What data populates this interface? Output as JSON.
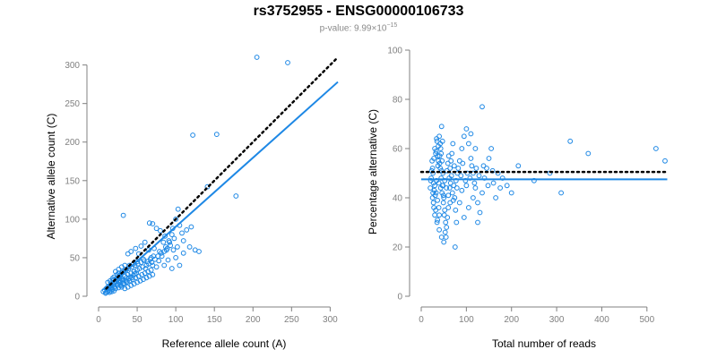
{
  "title": "rs3752955 - ENSG00000106733",
  "subtitle": {
    "prefix": "p-value: 9.99×10",
    "exponent": "−15"
  },
  "colors": {
    "points": "#1e88e5",
    "fit": "#1e88e5",
    "reference": "#000000",
    "axis": "#808080"
  },
  "chart_data": [
    {
      "type": "scatter",
      "xlabel": "Reference allele count (A)",
      "ylabel": "Alternative allele count (C)",
      "xlim": [
        0,
        310
      ],
      "ylim": [
        0,
        310
      ],
      "xticks": [
        0,
        50,
        100,
        150,
        200,
        250,
        300
      ],
      "yticks": [
        0,
        50,
        100,
        150,
        200,
        250,
        300
      ],
      "reference_line": {
        "style": "dotted",
        "x": [
          10,
          310
        ],
        "y": [
          10,
          310
        ]
      },
      "fit_line": {
        "style": "solid",
        "x": [
          8,
          310
        ],
        "y": [
          8,
          278
        ]
      },
      "points": [
        [
          205,
          310
        ],
        [
          245,
          303
        ],
        [
          122,
          209
        ],
        [
          153,
          210
        ],
        [
          141,
          142
        ],
        [
          178,
          130
        ],
        [
          103,
          113
        ],
        [
          100,
          100
        ],
        [
          105,
          92
        ],
        [
          32,
          105
        ],
        [
          70,
          94
        ],
        [
          75,
          88
        ],
        [
          66,
          95
        ],
        [
          80,
          85
        ],
        [
          86,
          78
        ],
        [
          95,
          80
        ],
        [
          92,
          70
        ],
        [
          110,
          72
        ],
        [
          118,
          64
        ],
        [
          60,
          70
        ],
        [
          55,
          65
        ],
        [
          48,
          62
        ],
        [
          42,
          58
        ],
        [
          38,
          55
        ],
        [
          52,
          55
        ],
        [
          65,
          60
        ],
        [
          72,
          62
        ],
        [
          88,
          60
        ],
        [
          82,
          52
        ],
        [
          78,
          46
        ],
        [
          90,
          47
        ],
        [
          100,
          50
        ],
        [
          102,
          64
        ],
        [
          110,
          56
        ],
        [
          68,
          50
        ],
        [
          58,
          48
        ],
        [
          50,
          45
        ],
        [
          45,
          42
        ],
        [
          40,
          40
        ],
        [
          35,
          35
        ],
        [
          62,
          40
        ],
        [
          70,
          40
        ],
        [
          75,
          38
        ],
        [
          85,
          40
        ],
        [
          95,
          36
        ],
        [
          105,
          40
        ],
        [
          30,
          30
        ],
        [
          28,
          26
        ],
        [
          25,
          22
        ],
        [
          22,
          20
        ],
        [
          20,
          18
        ],
        [
          18,
          16
        ],
        [
          15,
          14
        ],
        [
          12,
          12
        ],
        [
          10,
          10
        ],
        [
          8,
          8
        ],
        [
          6,
          6
        ],
        [
          16,
          10
        ],
        [
          20,
          12
        ],
        [
          24,
          14
        ],
        [
          28,
          15
        ],
        [
          32,
          16
        ],
        [
          36,
          18
        ],
        [
          40,
          20
        ],
        [
          44,
          22
        ],
        [
          48,
          24
        ],
        [
          52,
          26
        ],
        [
          56,
          28
        ],
        [
          60,
          30
        ],
        [
          64,
          32
        ],
        [
          68,
          34
        ],
        [
          30,
          22
        ],
        [
          34,
          26
        ],
        [
          38,
          28
        ],
        [
          42,
          30
        ],
        [
          46,
          32
        ],
        [
          50,
          34
        ],
        [
          26,
          30
        ],
        [
          24,
          28
        ],
        [
          20,
          25
        ],
        [
          18,
          23
        ],
        [
          15,
          20
        ],
        [
          12,
          18
        ],
        [
          22,
          32
        ],
        [
          26,
          35
        ],
        [
          30,
          38
        ],
        [
          34,
          40
        ],
        [
          14,
          8
        ],
        [
          18,
          9
        ],
        [
          22,
          10
        ],
        [
          26,
          11
        ],
        [
          30,
          12
        ],
        [
          34,
          10
        ],
        [
          38,
          12
        ],
        [
          42,
          14
        ],
        [
          46,
          16
        ],
        [
          50,
          18
        ],
        [
          54,
          20
        ],
        [
          58,
          22
        ],
        [
          62,
          24
        ],
        [
          66,
          26
        ],
        [
          70,
          28
        ],
        [
          28,
          20
        ],
        [
          32,
          22
        ],
        [
          36,
          24
        ],
        [
          14,
          12
        ],
        [
          16,
          13
        ],
        [
          19,
          15
        ],
        [
          21,
          17
        ],
        [
          23,
          19
        ],
        [
          25,
          16
        ],
        [
          27,
          18
        ],
        [
          29,
          14
        ],
        [
          31,
          20
        ],
        [
          33,
          17
        ],
        [
          35,
          21
        ],
        [
          37,
          19
        ],
        [
          39,
          23
        ],
        [
          41,
          25
        ],
        [
          43,
          24
        ],
        [
          45,
          27
        ],
        [
          47,
          29
        ],
        [
          49,
          30
        ],
        [
          53,
          36
        ],
        [
          57,
          38
        ],
        [
          61,
          36
        ],
        [
          65,
          42
        ],
        [
          69,
          44
        ],
        [
          73,
          48
        ],
        [
          77,
          52
        ],
        [
          81,
          56
        ],
        [
          85,
          58
        ],
        [
          89,
          62
        ],
        [
          93,
          66
        ],
        [
          97,
          60
        ],
        [
          12,
          6
        ],
        [
          10,
          5
        ],
        [
          14,
          5
        ],
        [
          17,
          6
        ],
        [
          20,
          7
        ],
        [
          9,
          4
        ],
        [
          11,
          9
        ],
        [
          13,
          10
        ],
        [
          16,
          17
        ],
        [
          19,
          21
        ],
        [
          24,
          24
        ],
        [
          27,
          27
        ],
        [
          31,
          31
        ],
        [
          35,
          33
        ],
        [
          39,
          36
        ],
        [
          43,
          38
        ],
        [
          47,
          40
        ],
        [
          51,
          42
        ],
        [
          55,
          44
        ],
        [
          59,
          46
        ],
        [
          63,
          45
        ],
        [
          67,
          48
        ],
        [
          71,
          52
        ],
        [
          79,
          58
        ],
        [
          87,
          64
        ],
        [
          91,
          72
        ],
        [
          98,
          75
        ],
        [
          108,
          82
        ],
        [
          114,
          86
        ],
        [
          120,
          90
        ],
        [
          125,
          60
        ],
        [
          130,
          58
        ],
        [
          96,
          88
        ],
        [
          84,
          70
        ]
      ]
    },
    {
      "type": "scatter",
      "xlabel": "Total number of reads",
      "ylabel": "Percentage alternative (C)",
      "xlim": [
        0,
        550
      ],
      "ylim": [
        0,
        100
      ],
      "xticks": [
        0,
        100,
        200,
        300,
        400,
        500
      ],
      "yticks": [
        0,
        20,
        40,
        60,
        80,
        100
      ],
      "reference_line": {
        "style": "dotted",
        "x": [
          0,
          545
        ],
        "y": [
          50.5,
          50.5
        ]
      },
      "fit_line": {
        "style": "solid",
        "x": [
          0,
          545
        ],
        "y": [
          47.5,
          47.5
        ]
      },
      "points": [
        [
          135,
          77
        ],
        [
          330,
          63
        ],
        [
          370,
          58
        ],
        [
          520,
          60
        ],
        [
          540,
          55
        ],
        [
          285,
          50
        ],
        [
          310,
          42
        ],
        [
          215,
          53
        ],
        [
          250,
          47
        ],
        [
          45,
          69
        ],
        [
          40,
          65
        ],
        [
          35,
          63
        ],
        [
          30,
          60
        ],
        [
          28,
          56
        ],
        [
          25,
          52
        ],
        [
          22,
          48
        ],
        [
          20,
          44
        ],
        [
          25,
          40
        ],
        [
          28,
          36
        ],
        [
          30,
          33
        ],
        [
          35,
          30
        ],
        [
          40,
          27
        ],
        [
          45,
          24
        ],
        [
          50,
          22
        ],
        [
          75,
          20
        ],
        [
          32,
          58
        ],
        [
          38,
          55
        ],
        [
          42,
          52
        ],
        [
          48,
          50
        ],
        [
          52,
          47
        ],
        [
          56,
          44
        ],
        [
          60,
          41
        ],
        [
          64,
          38
        ],
        [
          30,
          45
        ],
        [
          33,
          42
        ],
        [
          36,
          39
        ],
        [
          39,
          36
        ],
        [
          42,
          62
        ],
        [
          44,
          58
        ],
        [
          46,
          55
        ],
        [
          48,
          45
        ],
        [
          50,
          40
        ],
        [
          52,
          35
        ],
        [
          54,
          30
        ],
        [
          56,
          28
        ],
        [
          58,
          32
        ],
        [
          60,
          36
        ],
        [
          62,
          48
        ],
        [
          64,
          52
        ],
        [
          66,
          55
        ],
        [
          68,
          58
        ],
        [
          70,
          62
        ],
        [
          72,
          45
        ],
        [
          74,
          40
        ],
        [
          76,
          35
        ],
        [
          78,
          30
        ],
        [
          80,
          50
        ],
        [
          85,
          55
        ],
        [
          90,
          60
        ],
        [
          95,
          65
        ],
        [
          100,
          68
        ],
        [
          105,
          62
        ],
        [
          110,
          56
        ],
        [
          115,
          50
        ],
        [
          120,
          44
        ],
        [
          125,
          38
        ],
        [
          130,
          34
        ],
        [
          135,
          42
        ],
        [
          140,
          48
        ],
        [
          145,
          52
        ],
        [
          150,
          56
        ],
        [
          155,
          60
        ],
        [
          160,
          46
        ],
        [
          165,
          40
        ],
        [
          170,
          50
        ],
        [
          175,
          44
        ],
        [
          180,
          48
        ],
        [
          190,
          45
        ],
        [
          200,
          42
        ],
        [
          120,
          60
        ],
        [
          110,
          66
        ],
        [
          100,
          45
        ],
        [
          90,
          43
        ],
        [
          85,
          38
        ],
        [
          95,
          32
        ],
        [
          105,
          36
        ],
        [
          115,
          40
        ],
        [
          125,
          30
        ],
        [
          26,
          50
        ],
        [
          27,
          46
        ],
        [
          29,
          43
        ],
        [
          31,
          41
        ],
        [
          34,
          47
        ],
        [
          37,
          53
        ],
        [
          41,
          57
        ],
        [
          43,
          60
        ],
        [
          47,
          63
        ],
        [
          49,
          38
        ],
        [
          51,
          33
        ],
        [
          53,
          26
        ],
        [
          55,
          24
        ],
        [
          57,
          51
        ],
        [
          59,
          54
        ],
        [
          61,
          57
        ],
        [
          63,
          44
        ],
        [
          65,
          46
        ],
        [
          67,
          49
        ],
        [
          69,
          42
        ],
        [
          71,
          39
        ],
        [
          73,
          53
        ],
        [
          77,
          47
        ],
        [
          79,
          44
        ],
        [
          82,
          52
        ],
        [
          88,
          49
        ],
        [
          92,
          54
        ],
        [
          98,
          47
        ],
        [
          102,
          50
        ],
        [
          108,
          48
        ],
        [
          112,
          53
        ],
        [
          118,
          46
        ],
        [
          122,
          52
        ],
        [
          128,
          49
        ],
        [
          138,
          53
        ],
        [
          148,
          45
        ],
        [
          158,
          51
        ],
        [
          24,
          55
        ],
        [
          23,
          51
        ],
        [
          21,
          47
        ],
        [
          26,
          42
        ],
        [
          27,
          38
        ],
        [
          32,
          35
        ],
        [
          36,
          31
        ],
        [
          40,
          33
        ],
        [
          44,
          48
        ],
        [
          46,
          42
        ],
        [
          38,
          61
        ],
        [
          34,
          64
        ],
        [
          33,
          59
        ],
        [
          37,
          57
        ],
        [
          41,
          54
        ],
        [
          45,
          51
        ],
        [
          47,
          45
        ],
        [
          49,
          41
        ],
        [
          39,
          46
        ],
        [
          43,
          44
        ]
      ]
    }
  ]
}
